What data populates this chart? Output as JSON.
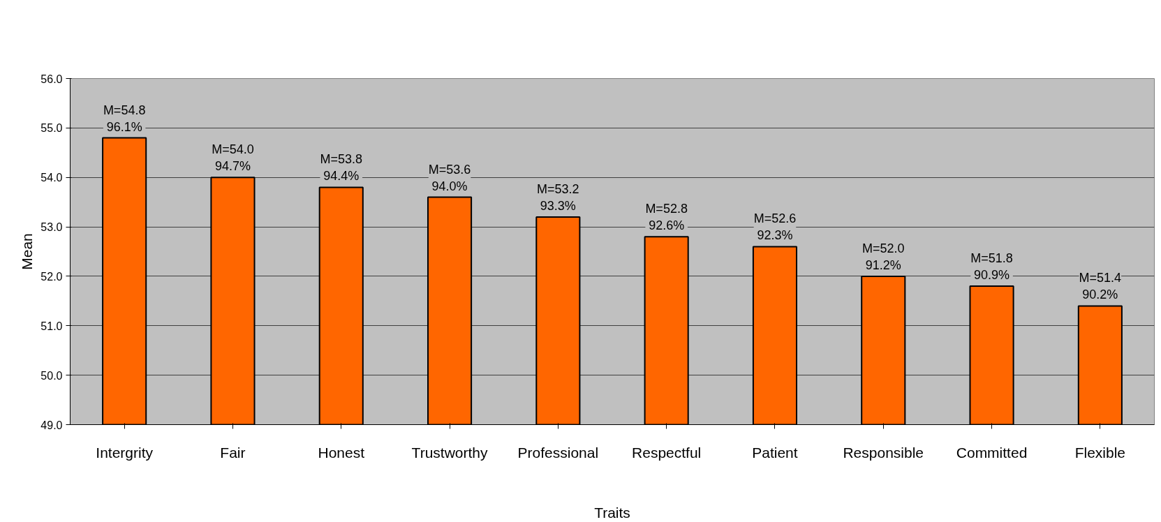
{
  "chart_data": {
    "type": "bar",
    "xlabel": "Traits",
    "ylabel": "Mean",
    "categories": [
      "Intergrity",
      "Fair",
      "Honest",
      "Trustworthy",
      "Professional",
      "Respectful",
      "Patient",
      "Responsible",
      "Committed",
      "Flexible"
    ],
    "values": [
      54.8,
      54.0,
      53.8,
      53.6,
      53.2,
      52.8,
      52.6,
      52.0,
      51.8,
      51.4
    ],
    "value_labels": [
      "M=54.8\n96.1%",
      "M=54.0\n94.7%",
      "M=53.8\n94.4%",
      "M=53.6\n94.0%",
      "M=53.2\n93.3%",
      "M=52.8\n92.6%",
      "M=52.6\n92.3%",
      "M=52.0\n91.2%",
      "M=51.8\n90.9%",
      "M=51.4\n90.2%"
    ],
    "color": "#ff6600",
    "ylim": [
      49.0,
      56.0
    ],
    "yticks": [
      {
        "value": 49,
        "label": "49.0"
      },
      {
        "value": 50,
        "label": "50.0"
      },
      {
        "value": 51,
        "label": "51.0"
      },
      {
        "value": 52,
        "label": "52.0"
      },
      {
        "value": 53,
        "label": "53.0"
      },
      {
        "value": 54,
        "label": "54.0"
      },
      {
        "value": 55,
        "label": "55.0"
      },
      {
        "value": 56,
        "label": "56.0"
      }
    ],
    "grid": "y"
  }
}
